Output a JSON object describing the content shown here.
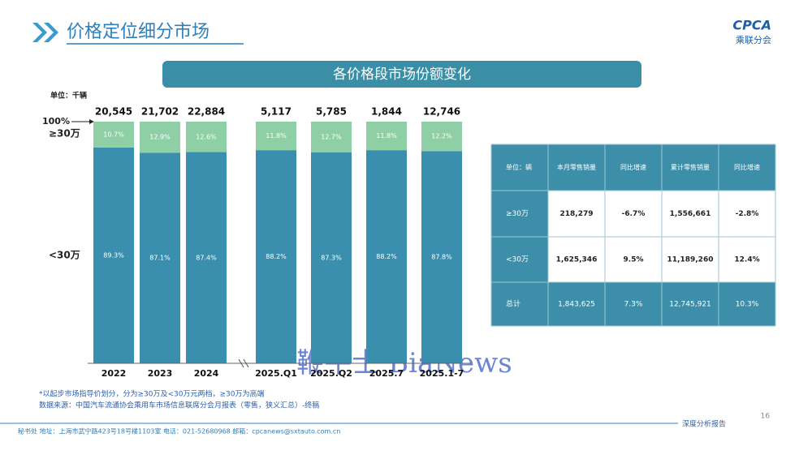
{
  "header": {
    "title": "价格定位细分市场",
    "logo": "CPCA",
    "logo_sub": "乘联分会"
  },
  "chart_data": {
    "type": "bar",
    "title": "各价格段市场份额变化",
    "unit": "单位：千辆",
    "categories": [
      "2022",
      "2023",
      "2024",
      "2025.Q1",
      "2025.Q2",
      "2025.7",
      "2025.1-7"
    ],
    "series": [
      {
        "name": "<30万",
        "color": "#3b8fae",
        "values": [
          89.3,
          87.1,
          87.4,
          88.2,
          87.3,
          88.2,
          87.8
        ],
        "value_labels": [
          "89.3%",
          "87.1%",
          "87.4%",
          "88.2%",
          "87.3%",
          "88.2%",
          "87.8%"
        ]
      },
      {
        "name": "≥30万",
        "color": "#8fcfa6",
        "values": [
          10.7,
          12.9,
          12.6,
          11.8,
          12.7,
          11.8,
          12.2
        ],
        "value_labels": [
          "10.7%",
          "12.9%",
          "12.6%",
          "11.8%",
          "12.7%",
          "11.8%",
          "12.2%"
        ]
      }
    ],
    "totals": {
      "values": [
        20545,
        21702,
        22884,
        5117,
        5785,
        1844,
        12746
      ],
      "value_labels": [
        "20,545",
        "21,702",
        "22,884",
        "5,117",
        "5,785",
        "1,844",
        "12,746"
      ]
    },
    "stacked": true,
    "ylim": [
      0,
      100
    ],
    "yticks": [
      {
        "value": 100,
        "label": "100%"
      }
    ]
  },
  "table": {
    "header": [
      "单位：辆",
      "本月零售销量",
      "同比增速",
      "累计零售销量",
      "同比增速"
    ],
    "rows": [
      [
        "≥30万",
        "218,279",
        "-6.7%",
        "1,556,661",
        "-2.8%"
      ],
      [
        "<30万",
        "1,625,346",
        "9.5%",
        "11,189,260",
        "12.4%"
      ],
      [
        "总计",
        "1,843,625",
        "7.3%",
        "12,745,921",
        "10.3%"
      ]
    ]
  },
  "notes": [
    "*以起步市场指导价划分，分为≥30万及<30万元两档，≥30万为高端",
    "数据来源：中国汽车流通协会乘用车市场信息联席分会月报表（零售，狭义汇总）-终稿"
  ],
  "watermark": "鞭牛士 BiaNews",
  "footer": {
    "address": "秘书处  地址：上海市武宁路423号18号楼1103室  电话：021-52680968  邮箱：cpcanews@sxtauto.com.cn",
    "report": "深度分析报告",
    "page": "16"
  }
}
